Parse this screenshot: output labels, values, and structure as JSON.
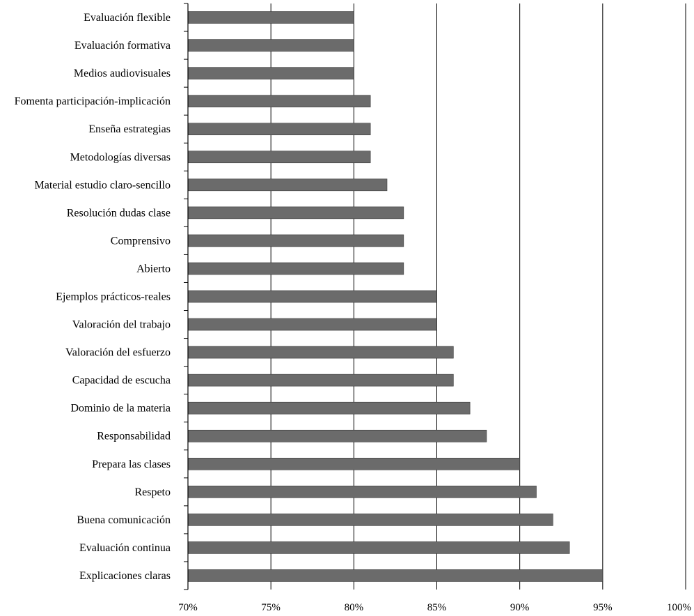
{
  "chart_data": {
    "type": "bar",
    "orientation": "horizontal",
    "categories": [
      "Evaluación flexible",
      "Evaluación formativa",
      "Medios audiovisuales",
      "Fomenta participación-implicación",
      "Enseña estrategias",
      "Metodologías diversas",
      "Material estudio claro-sencillo",
      "Resolución dudas clase",
      "Comprensivo",
      "Abierto",
      "Ejemplos prácticos-reales",
      "Valoración del trabajo",
      "Valoración del esfuerzo",
      "Capacidad de escucha",
      "Dominio de la materia",
      "Responsabilidad",
      "Prepara las clases",
      "Respeto",
      "Buena comunicación",
      "Evaluación continua",
      "Explicaciones claras"
    ],
    "values": [
      80,
      80,
      80,
      81,
      81,
      81,
      82,
      83,
      83,
      83,
      85,
      85,
      86,
      86,
      87,
      88,
      90,
      91,
      92,
      93,
      95
    ],
    "xlim": [
      70,
      100
    ],
    "xticks": [
      70,
      75,
      80,
      85,
      90,
      95,
      100
    ],
    "xtick_labels": [
      "70%",
      "75%",
      "80%",
      "85%",
      "90%",
      "95%",
      "100%"
    ],
    "title": "",
    "xlabel": "",
    "ylabel": "",
    "grid": "vertical",
    "colors": {
      "bar": "#6b6b6b",
      "grid": "#000000",
      "text": "#000000"
    }
  }
}
